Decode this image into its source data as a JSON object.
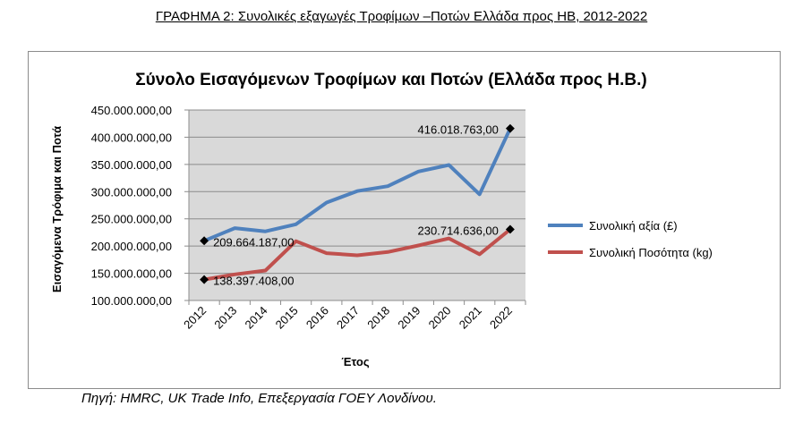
{
  "caption": "ΓΡΑΦΗΜΑ 2: Συνολικές εξαγωγές Τροφίμων –Ποτών Ελλάδα προς ΗΒ, 2012-2022",
  "source": "Πηγή: HMRC, UK Trade Info, Επεξεργασία ΓΟΕΥ Λονδίνου.",
  "chart_data": {
    "type": "line",
    "title": "Σύνολο Εισαγόμενων Τροφίμων και Ποτών (Ελλάδα προς Η.Β.)",
    "xlabel": "Έτος",
    "ylabel": "Εισαγόμενα Τρόφιμα και Ποτά",
    "categories": [
      "2012",
      "2013",
      "2014",
      "2015",
      "2016",
      "2017",
      "2018",
      "2019",
      "2020",
      "2021",
      "2022"
    ],
    "ylim": [
      100000000,
      450000000
    ],
    "ytick_labels": [
      "100.000.000,00",
      "150.000.000,00",
      "200.000.000,00",
      "250.000.000,00",
      "300.000.000,00",
      "350.000.000,00",
      "400.000.000,00",
      "450.000.000,00"
    ],
    "grid": true,
    "legend_position": "right",
    "series": [
      {
        "name": "Συνολική αξία (£)",
        "color": "#4f81bd",
        "values": [
          209664187,
          233000000,
          227000000,
          240000000,
          280000000,
          301000000,
          310000000,
          337000000,
          349000000,
          295000000,
          416018763
        ]
      },
      {
        "name": "Συνολική Ποσότητα (kg)",
        "color": "#c0504d",
        "values": [
          138397408,
          148000000,
          155000000,
          209000000,
          187000000,
          183000000,
          189000000,
          201000000,
          214000000,
          185000000,
          230714636
        ]
      }
    ],
    "annotations": [
      {
        "series": 0,
        "index": 0,
        "text": "209.664.187,00"
      },
      {
        "series": 0,
        "index": 10,
        "text": "416.018.763,00"
      },
      {
        "series": 1,
        "index": 0,
        "text": "138.397.408,00"
      },
      {
        "series": 1,
        "index": 10,
        "text": "230.714.636,00"
      }
    ],
    "plot_background": "#d9d9d9"
  }
}
